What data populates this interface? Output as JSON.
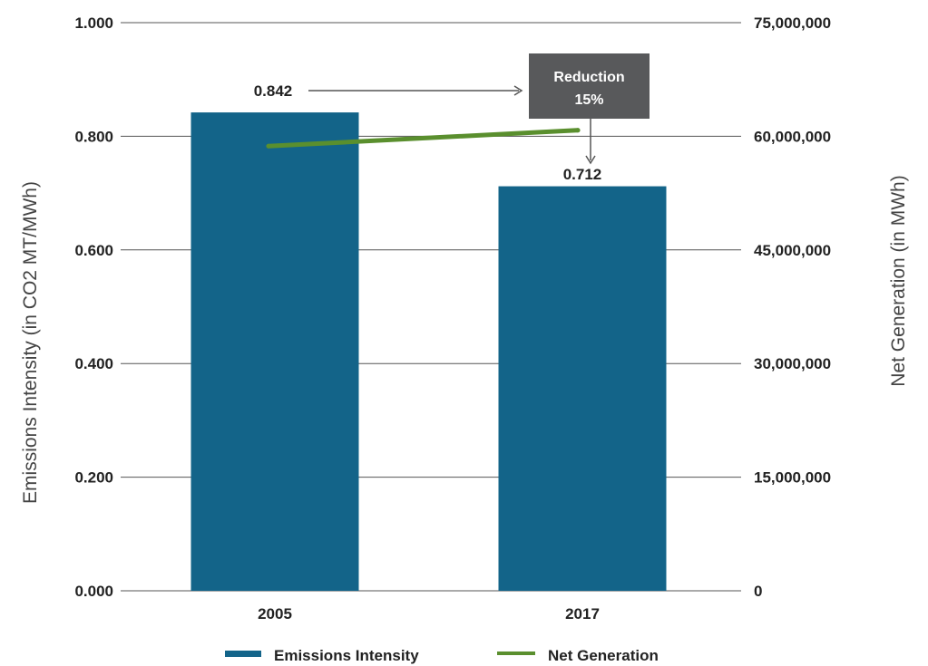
{
  "chart_data": {
    "type": "bar",
    "categories": [
      "2005",
      "2017"
    ],
    "series": [
      {
        "name": "Emissions Intensity",
        "type": "bar",
        "axis": "left",
        "values": [
          0.842,
          0.712
        ]
      },
      {
        "name": "Net Generation",
        "type": "line",
        "axis": "right",
        "values": [
          58700000,
          60800000
        ]
      }
    ],
    "ylabel": "Emissions Intensity (in CO2 MT/MWh)",
    "y2label": "Net Generation (in MWh)",
    "ylim": [
      0,
      1.0
    ],
    "y2lim": [
      0,
      75000000
    ],
    "yticks": [
      "0.000",
      "0.200",
      "0.400",
      "0.600",
      "0.800",
      "1.000"
    ],
    "y2ticks": [
      "0",
      "15,000,000",
      "30,000,000",
      "45,000,000",
      "60,000,000",
      "75,000,000"
    ],
    "grid": true,
    "legend_position": "bottom",
    "annotations": {
      "start_label": "0.842",
      "end_label": "0.712",
      "reduction_title": "Reduction",
      "reduction_value": "15%"
    },
    "colors": {
      "bar": "#136489",
      "line": "#5a8f2e",
      "box": "#58595b",
      "grid": "#555555"
    }
  }
}
